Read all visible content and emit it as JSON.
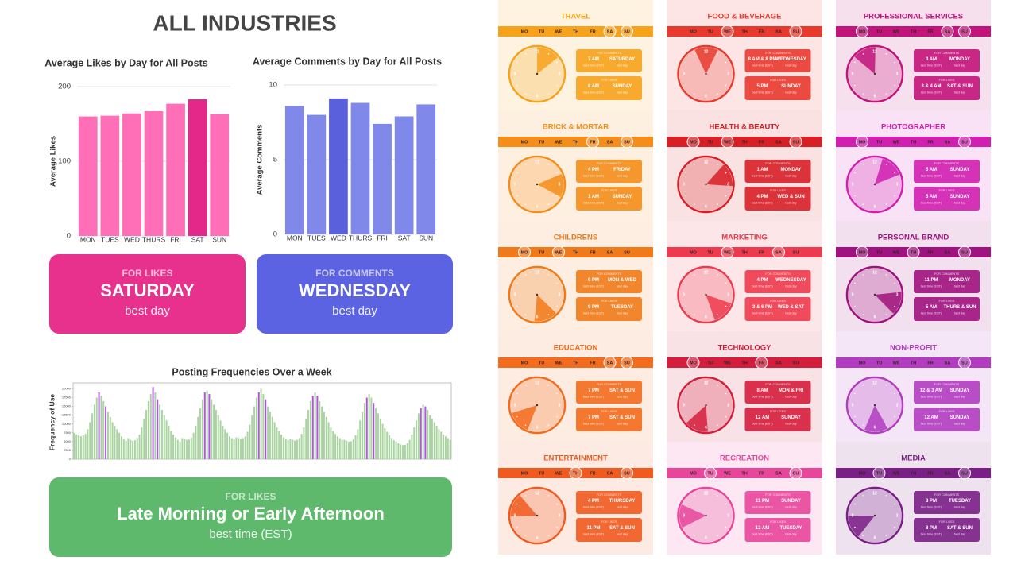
{
  "header": {
    "title": "ALL INDUSTRIES"
  },
  "chart_data": [
    {
      "type": "bar",
      "title": "Average Likes by Day for All Posts",
      "ylabel": "Average Likes",
      "categories": [
        "MON",
        "TUES",
        "WED",
        "THURS",
        "FRI",
        "SAT",
        "SUN"
      ],
      "values": [
        160,
        161,
        164,
        167,
        177,
        183,
        163
      ],
      "color": "#ff6fb8",
      "highlight_color": "#e4288a",
      "highlight": [
        5
      ],
      "ylim": [
        0,
        200
      ],
      "yticks": [
        0,
        100,
        200
      ],
      "grid": true
    },
    {
      "type": "bar",
      "title": "Average Comments by Day for All Posts",
      "ylabel": "Average Comments",
      "categories": [
        "MON",
        "TUES",
        "WED",
        "THURS",
        "FRI",
        "SAT",
        "SUN"
      ],
      "values": [
        8.6,
        8.0,
        9.1,
        8.8,
        7.4,
        7.9,
        8.7
      ],
      "color": "#8088ea",
      "highlight_color": "#5a5fdc",
      "highlight": [
        2
      ],
      "ylim": [
        0,
        10
      ],
      "yticks": [
        0,
        5,
        10
      ],
      "grid": true
    },
    {
      "type": "bar",
      "title": "Posting Frequencies Over a Week",
      "ylabel": "Frequency of Use",
      "values": [
        7500,
        7000,
        6800,
        6500,
        6800,
        7200,
        8500,
        10500,
        13000,
        15500,
        17500,
        19000,
        18000,
        16500,
        15000,
        13500,
        12000,
        10500,
        9500,
        8500,
        7500,
        6500,
        5800,
        5200,
        6000,
        5500,
        5200,
        5400,
        6000,
        7000,
        9000,
        11500,
        14000,
        16500,
        18500,
        20500,
        19000,
        17000,
        15500,
        14000,
        12500,
        11000,
        9500,
        8000,
        7000,
        6200,
        5500,
        5000,
        6000,
        5800,
        5500,
        5600,
        6200,
        7500,
        9500,
        12000,
        14500,
        17000,
        19000,
        19500,
        18500,
        17000,
        15500,
        14000,
        12500,
        11000,
        9500,
        8500,
        7500,
        6500,
        6000,
        5600,
        6200,
        6000,
        5800,
        6000,
        6500,
        7800,
        9800,
        12500,
        15000,
        17500,
        19000,
        20000,
        18500,
        17000,
        15000,
        13500,
        12000,
        10500,
        9000,
        8000,
        7000,
        6200,
        5800,
        5400,
        5800,
        5500,
        5300,
        5500,
        6000,
        7200,
        9000,
        11500,
        14000,
        16500,
        18000,
        19000,
        18000,
        16500,
        15000,
        13500,
        12000,
        10500,
        9000,
        8000,
        7200,
        6500,
        6000,
        5500,
        5500,
        5200,
        5000,
        5100,
        5600,
        6800,
        8500,
        11000,
        13500,
        16000,
        17500,
        18500,
        17500,
        16000,
        14500,
        13000,
        11500,
        10000,
        8800,
        7800,
        6800,
        6000,
        5400,
        5000,
        4500,
        4200,
        4000,
        4100,
        4500,
        5500,
        7000,
        9000,
        11000,
        13000,
        14500,
        15500,
        15000,
        14000,
        12500,
        11500,
        10500,
        9500,
        8500,
        7800,
        7000,
        6500,
        6000,
        5500
      ],
      "color": "#a9d4a0",
      "highlight_color": "#b455e0",
      "highlight": [
        11,
        14,
        35,
        37,
        58,
        60,
        82,
        85,
        106,
        108,
        130,
        133,
        154,
        156
      ],
      "ylim": [
        0,
        21000
      ],
      "yticks": [
        0,
        2500,
        5000,
        7500,
        10000,
        12500,
        15000,
        17500,
        20000
      ],
      "grid": false
    }
  ],
  "cards": [
    {
      "kicker": "FOR LIKES",
      "headline": "SATURDAY",
      "caption": "best day",
      "color": "#e8318d"
    },
    {
      "kicker": "FOR COMMENTS",
      "headline": "WEDNESDAY",
      "caption": "best day",
      "color": "#5b63e2"
    },
    {
      "kicker": "FOR LIKES",
      "headline": "Late Morning or Early Afternoon",
      "caption": "best time (EST)",
      "color": "#5fb96c"
    }
  ],
  "industry_labels": {
    "weekdays": [
      "MO",
      "TU",
      "WE",
      "TH",
      "FR",
      "SA",
      "SU"
    ],
    "clock_numbers": [
      "12",
      "3",
      "6",
      "9"
    ],
    "comments": "FOR COMMENTS",
    "likes": "FOR LIKES",
    "time_caption": "best time (EST)",
    "day_caption": "best day"
  },
  "industries": [
    {
      "name": "TRAVEL",
      "color": "#f7a21b",
      "highlighted_days": [
        5,
        6
      ],
      "comments": {
        "time": "7 AM",
        "day": "SATURDAY"
      },
      "likes": {
        "time": "8 AM",
        "day": "SUNDAY"
      }
    },
    {
      "name": "BRICK & MORTAR",
      "color": "#f58d1a",
      "highlighted_days": [
        4,
        6
      ],
      "comments": {
        "time": "4 PM",
        "day": "FRIDAY"
      },
      "likes": {
        "time": "1 AM",
        "day": "SUNDAY"
      }
    },
    {
      "name": "CHILDRENS",
      "color": "#f07a1a",
      "highlighted_days": [
        0,
        2
      ],
      "comments": {
        "time": "9 PM",
        "day": "MON & WED"
      },
      "likes": {
        "time": "9 PM",
        "day": "TUESDAY"
      }
    },
    {
      "name": "EDUCATION",
      "color": "#f36b1c",
      "highlighted_days": [
        5,
        6
      ],
      "comments": {
        "time": "7 PM",
        "day": "SAT & SUN"
      },
      "likes": {
        "time": "7 PM",
        "day": "SAT & SUN"
      }
    },
    {
      "name": "ENTERTAINMENT",
      "color": "#f15a1f",
      "highlighted_days": [
        3,
        6
      ],
      "comments": {
        "time": "4 PM",
        "day": "THURSDAY"
      },
      "likes": {
        "time": "11 PM",
        "day": "SAT & SUN"
      }
    },
    {
      "name": "FOOD & BEVERAGE",
      "color": "#e8392d",
      "highlighted_days": [
        2,
        6
      ],
      "comments": {
        "time": "8 AM & 8 PM",
        "day": "WEDNESDAY"
      },
      "likes": {
        "time": "5 PM",
        "day": "SUNDAY"
      }
    },
    {
      "name": "HEALTH & BEAUTY",
      "color": "#d81f26",
      "highlighted_days": [
        0,
        2,
        6
      ],
      "comments": {
        "time": "1 AM",
        "day": "MONDAY"
      },
      "likes": {
        "time": "4 PM",
        "day": "WED & SUN"
      }
    },
    {
      "name": "MARKETING",
      "color": "#ee3a4e",
      "highlighted_days": [
        2,
        5
      ],
      "comments": {
        "time": "4 PM",
        "day": "WEDNESDAY"
      },
      "likes": {
        "time": "3 & 6 PM",
        "day": "WED & SAT"
      }
    },
    {
      "name": "TECHNOLOGY",
      "color": "#d41d3c",
      "highlighted_days": [
        0,
        4
      ],
      "comments": {
        "time": "8 AM",
        "day": "MON & FRI"
      },
      "likes": {
        "time": "12 AM",
        "day": "SUNDAY"
      }
    },
    {
      "name": "RECREATION",
      "color": "#e8469b",
      "highlighted_days": [
        1,
        6
      ],
      "comments": {
        "time": "11 PM",
        "day": "SUNDAY"
      },
      "likes": {
        "time": "12 AM",
        "day": "TUESDAY"
      }
    },
    {
      "name": "PROFESSIONAL SERVICES",
      "color": "#c2137a",
      "highlighted_days": [
        0,
        5,
        6
      ],
      "comments": {
        "time": "3 AM",
        "day": "MONDAY"
      },
      "likes": {
        "time": "3 & 4 AM",
        "day": "SAT & SUN"
      }
    },
    {
      "name": "PHOTOGRAPHER",
      "color": "#d11fb0",
      "highlighted_days": [
        0,
        6
      ],
      "comments": {
        "time": "5 AM",
        "day": "SUNDAY"
      },
      "likes": {
        "time": "5 AM",
        "day": "SUNDAY"
      }
    },
    {
      "name": "PERSONAL BRAND",
      "color": "#a0127d",
      "highlighted_days": [
        0,
        3,
        6
      ],
      "comments": {
        "time": "11 PM",
        "day": "MONDAY"
      },
      "likes": {
        "time": "5 AM",
        "day": "THURS & SUN"
      }
    },
    {
      "name": "NON-PROFIT",
      "color": "#b23cc0",
      "highlighted_days": [
        6
      ],
      "comments": {
        "time": "12 & 3 AM",
        "day": "SUNDAY"
      },
      "likes": {
        "time": "12 AM",
        "day": "SUNDAY"
      }
    },
    {
      "name": "MEDIA",
      "color": "#7a1f86",
      "highlighted_days": [
        1,
        6
      ],
      "comments": {
        "time": "8 PM",
        "day": "TUESDAY"
      },
      "likes": {
        "time": "8 PM",
        "day": "SAT & SUN"
      }
    }
  ]
}
